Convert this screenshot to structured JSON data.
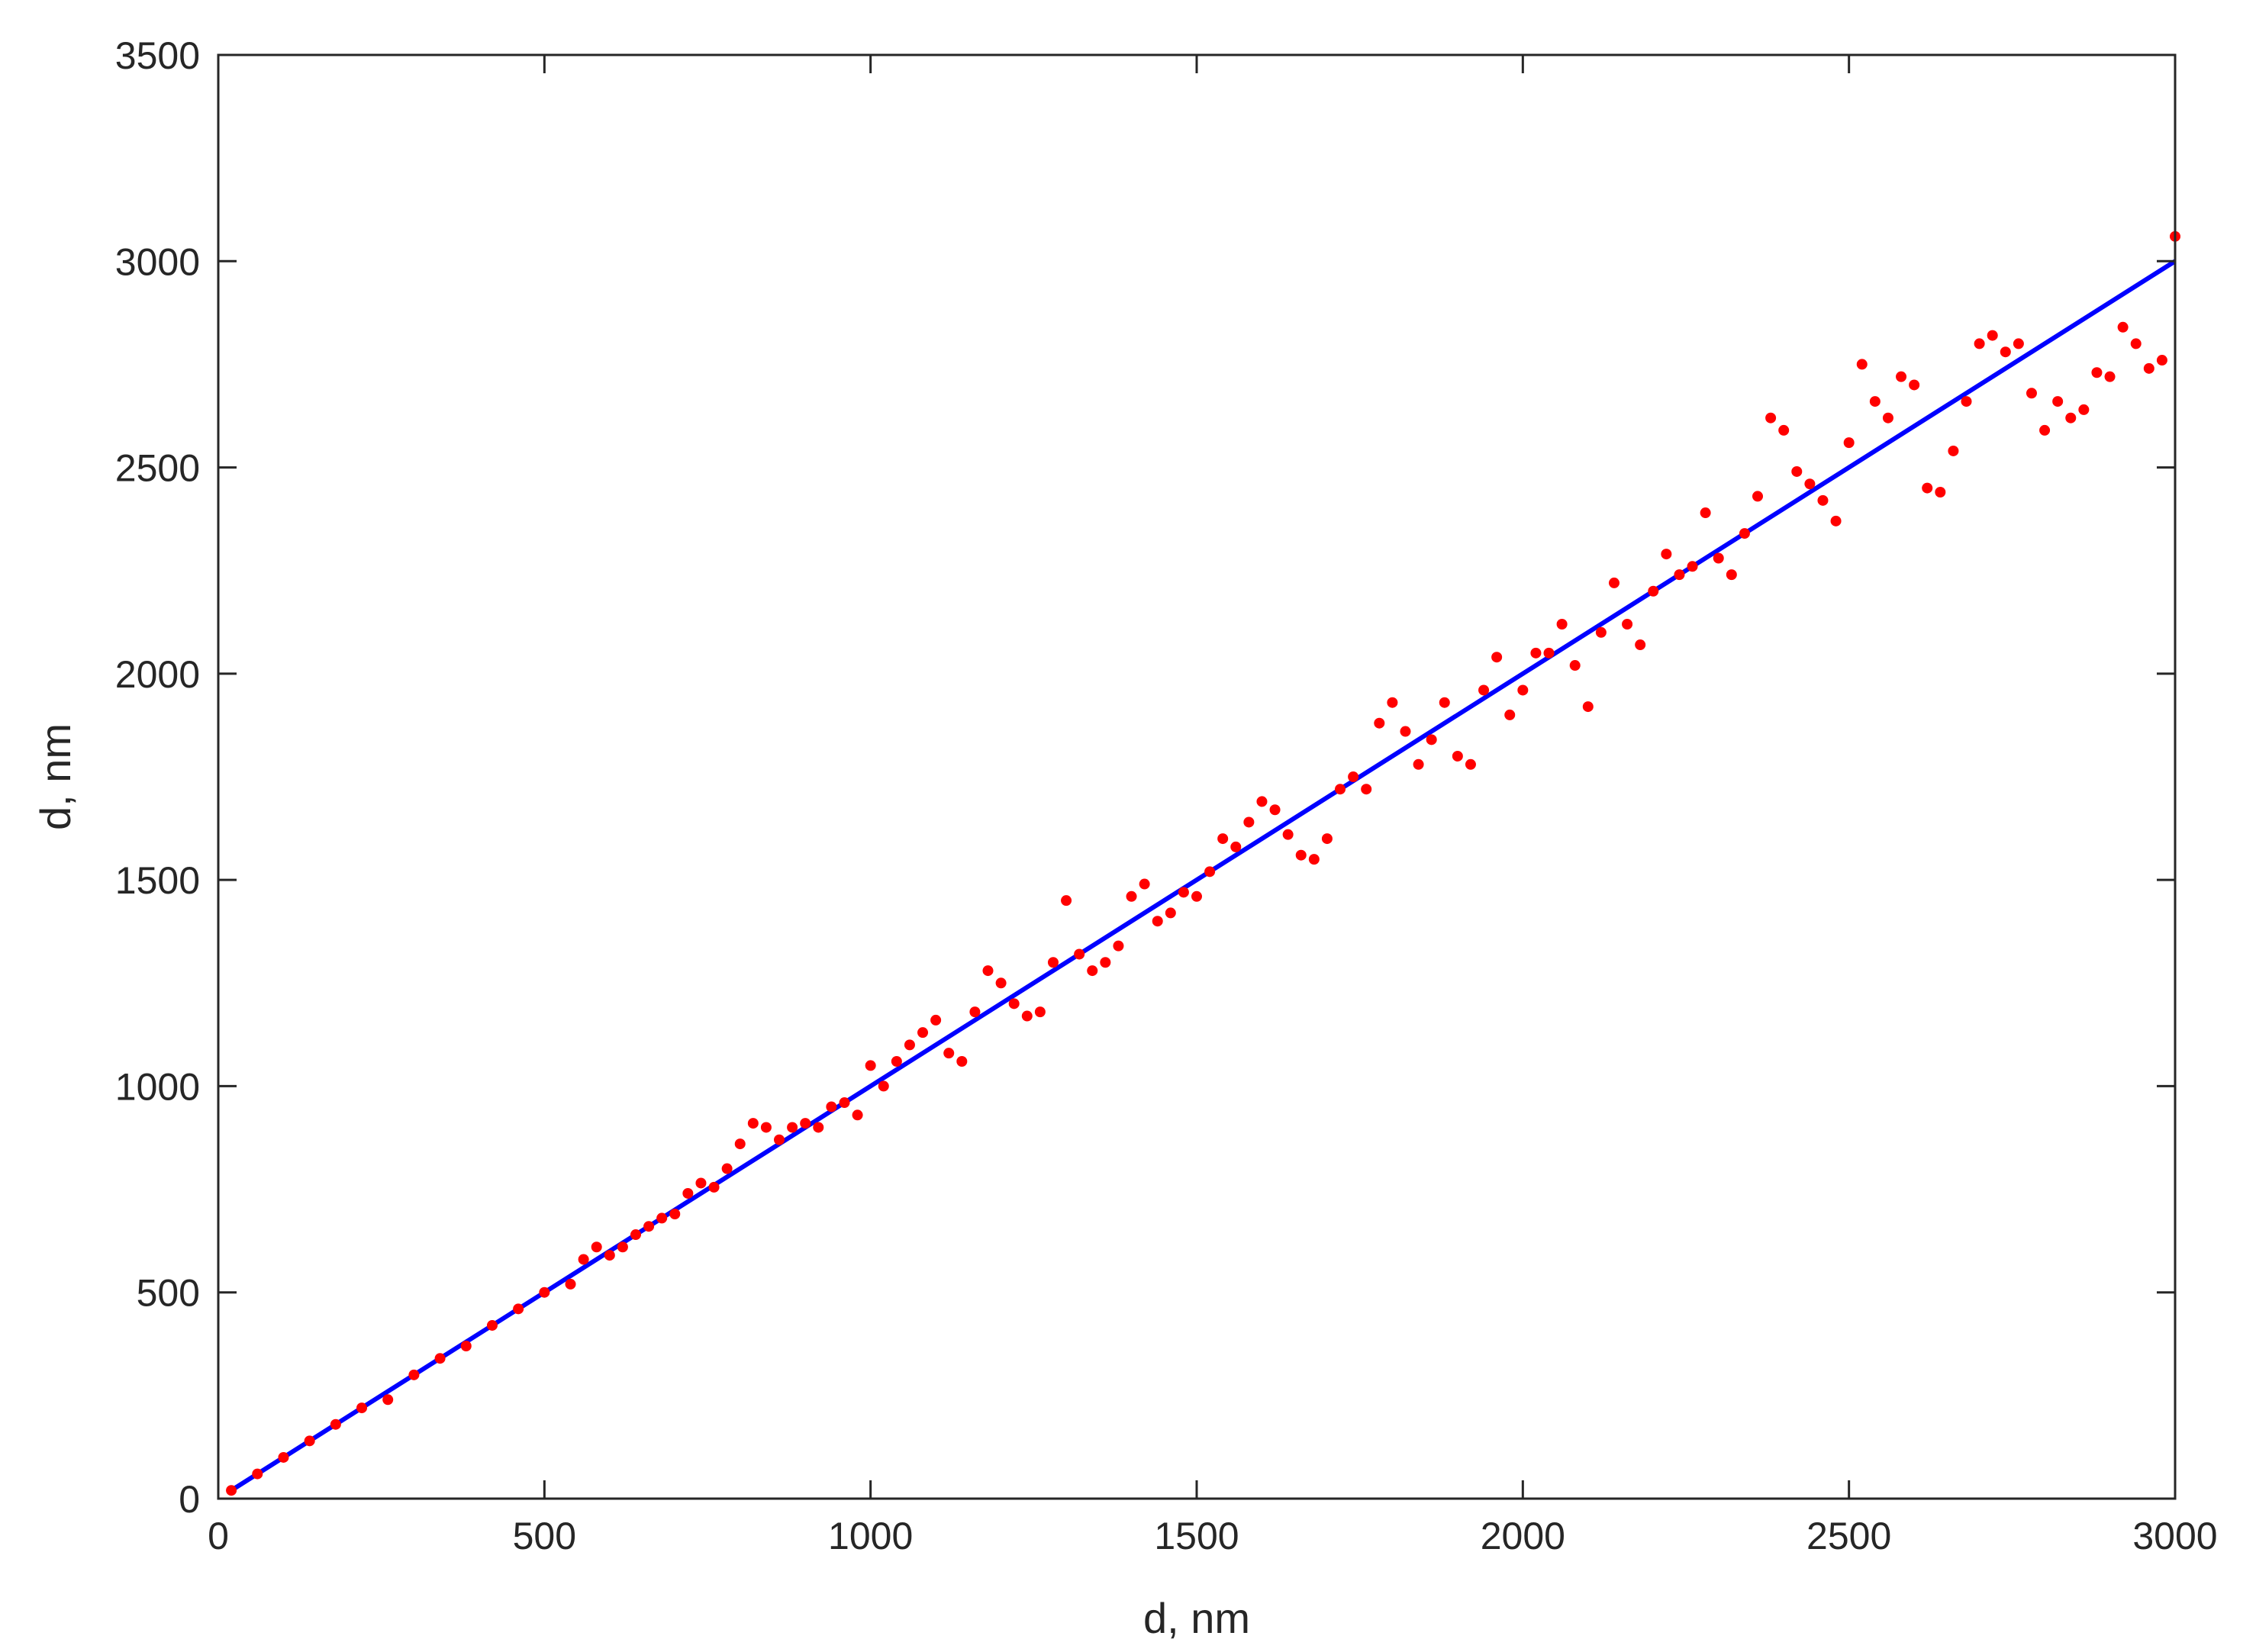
{
  "chart_data": {
    "type": "scatter",
    "title": "",
    "xlabel": "d, nm",
    "ylabel": "d, nm",
    "xlim": [
      0,
      3000
    ],
    "ylim": [
      0,
      3500
    ],
    "xticks": [
      0,
      500,
      1000,
      1500,
      2000,
      2500,
      3000
    ],
    "yticks": [
      0,
      500,
      1000,
      1500,
      2000,
      2500,
      3000,
      3500
    ],
    "grid": false,
    "legend": "none",
    "box": true,
    "colors": {
      "points": "#ff0000",
      "line": "#0000ff",
      "axes": "#262626"
    },
    "series": [
      {
        "kind": "line",
        "x": [
          20,
          3000
        ],
        "y": [
          20,
          3000
        ]
      },
      {
        "kind": "scatter",
        "x": [
          20,
          60,
          100,
          140,
          180,
          220,
          260,
          300,
          340,
          380,
          420,
          460,
          500,
          540,
          560,
          580,
          600,
          620,
          640,
          660,
          680,
          700,
          720,
          740,
          760,
          780,
          800,
          820,
          840,
          860,
          880,
          900,
          920,
          940,
          960,
          980,
          1000,
          1020,
          1040,
          1060,
          1080,
          1100,
          1120,
          1140,
          1160,
          1180,
          1200,
          1220,
          1240,
          1260,
          1280,
          1300,
          1320,
          1340,
          1360,
          1380,
          1400,
          1420,
          1440,
          1460,
          1480,
          1500,
          1520,
          1540,
          1560,
          1580,
          1600,
          1620,
          1640,
          1660,
          1680,
          1700,
          1720,
          1740,
          1760,
          1780,
          1800,
          1820,
          1840,
          1860,
          1880,
          1900,
          1920,
          1940,
          1960,
          1980,
          2000,
          2020,
          2040,
          2060,
          2080,
          2100,
          2120,
          2140,
          2160,
          2180,
          2200,
          2220,
          2240,
          2260,
          2280,
          2300,
          2320,
          2340,
          2360,
          2380,
          2400,
          2420,
          2440,
          2460,
          2480,
          2500,
          2520,
          2540,
          2560,
          2580,
          2600,
          2620,
          2640,
          2660,
          2680,
          2700,
          2720,
          2740,
          2760,
          2780,
          2800,
          2820,
          2840,
          2860,
          2880,
          2900,
          2920,
          2940,
          2960,
          2980,
          3000
        ],
        "y": [
          20,
          60,
          100,
          140,
          180,
          220,
          240,
          300,
          340,
          370,
          420,
          460,
          500,
          520,
          580,
          610,
          590,
          610,
          640,
          660,
          680,
          690,
          740,
          765,
          755,
          800,
          860,
          910,
          900,
          870,
          900,
          910,
          900,
          950,
          960,
          930,
          1050,
          1000,
          1060,
          1100,
          1130,
          1160,
          1080,
          1060,
          1180,
          1280,
          1250,
          1200,
          1170,
          1180,
          1300,
          1450,
          1320,
          1280,
          1300,
          1340,
          1460,
          1490,
          1400,
          1420,
          1470,
          1460,
          1520,
          1600,
          1580,
          1640,
          1690,
          1670,
          1610,
          1560,
          1550,
          1600,
          1720,
          1750,
          1720,
          1880,
          1930,
          1860,
          1780,
          1840,
          1930,
          1800,
          1780,
          1960,
          2040,
          1900,
          1960,
          2050,
          2050,
          2120,
          2020,
          1920,
          2100,
          2220,
          2120,
          2070,
          2200,
          2290,
          2240,
          2260,
          2390,
          2280,
          2240,
          2340,
          2430,
          2620,
          2590,
          2490,
          2460,
          2420,
          2370,
          2560,
          2750,
          2660,
          2620,
          2720,
          2700,
          2450,
          2440,
          2540,
          2660,
          2800,
          2820,
          2780,
          2800,
          2680,
          2590,
          2660,
          2620,
          2640,
          2730,
          2720,
          2840,
          2800,
          2740,
          2760,
          3060
        ]
      }
    ]
  }
}
